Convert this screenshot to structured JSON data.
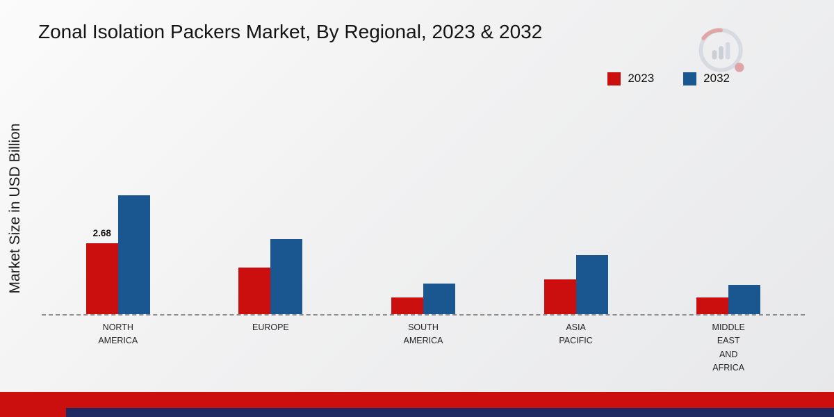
{
  "page": {
    "title": "Zonal Isolation Packers Market, By Regional, 2023 & 2032",
    "ylabel": "Market Size in USD Billion"
  },
  "legend": {
    "items": [
      {
        "label": "2023",
        "color": "#cb0e0e"
      },
      {
        "label": "2032",
        "color": "#1a5791"
      }
    ]
  },
  "chart_data": {
    "type": "bar",
    "title": "Zonal Isolation Packers Market, By Regional, 2023 & 2032",
    "ylabel": "Market Size in USD Billion",
    "categories": [
      "NORTH AMERICA",
      "EUROPE",
      "SOUTH AMERICA",
      "ASIA PACIFIC",
      "MIDDLE EAST AND AFRICA"
    ],
    "category_label_lines": [
      [
        "NORTH",
        "AMERICA"
      ],
      [
        "EUROPE"
      ],
      [
        "SOUTH",
        "AMERICA"
      ],
      [
        "ASIA",
        "PACIFIC"
      ],
      [
        "MIDDLE",
        "EAST",
        "AND",
        "AFRICA"
      ]
    ],
    "series": [
      {
        "name": "2023",
        "color": "#cb0e0e",
        "values": [
          2.68,
          1.75,
          0.63,
          1.31,
          0.63
        ]
      },
      {
        "name": "2032",
        "color": "#1a5791",
        "values": [
          4.5,
          2.84,
          1.16,
          2.24,
          1.1
        ]
      }
    ],
    "annotations": [
      {
        "series_index": 0,
        "category_index": 0,
        "text": "2.68"
      }
    ],
    "ylim": [
      0,
      5
    ],
    "grid": false,
    "legend_position": "top-right",
    "baseline_style": "dashed"
  },
  "branding": {
    "logo_name": "market-research-future-logo",
    "bottom_red": "#cb0e0e",
    "bottom_navy": "#1e2b63"
  }
}
